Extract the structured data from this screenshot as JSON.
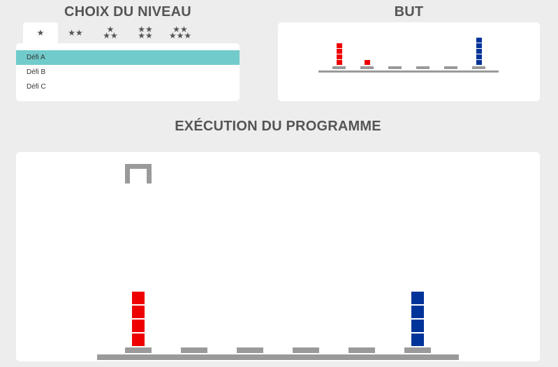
{
  "level_section": {
    "title": "CHOIX DU NIVEAU",
    "tabs": [
      {
        "rows": [
          "★"
        ]
      },
      {
        "rows": [
          "★★"
        ]
      },
      {
        "rows": [
          "★",
          "★★"
        ]
      },
      {
        "rows": [
          "★★",
          "★★"
        ]
      },
      {
        "rows": [
          "★★",
          "★★★"
        ]
      }
    ],
    "active_tab": 0,
    "challenges": [
      "Défi A",
      "Défi B",
      "Défi C"
    ],
    "selected_challenge": 0
  },
  "goal_section": {
    "title": "BUT",
    "stacks": [
      {
        "color": "red",
        "count": 4
      },
      {
        "color": "red",
        "count": 1
      },
      {
        "color": "",
        "count": 0
      },
      {
        "color": "",
        "count": 0
      },
      {
        "color": "",
        "count": 0
      },
      {
        "color": "blue",
        "count": 5
      }
    ]
  },
  "execution_section": {
    "title": "EXÉCUTION DU PROGRAMME",
    "stacks": [
      {
        "color": "red",
        "count": 4
      },
      {
        "color": "",
        "count": 0
      },
      {
        "color": "",
        "count": 0
      },
      {
        "color": "",
        "count": 0
      },
      {
        "color": "",
        "count": 0
      },
      {
        "color": "blue",
        "count": 4
      }
    ],
    "crane_position": 0
  },
  "colors": {
    "red": "#ee0000",
    "blue": "#003399",
    "accent": "#72cbcb",
    "platform": "#9a9a9a",
    "heading": "#555555"
  }
}
